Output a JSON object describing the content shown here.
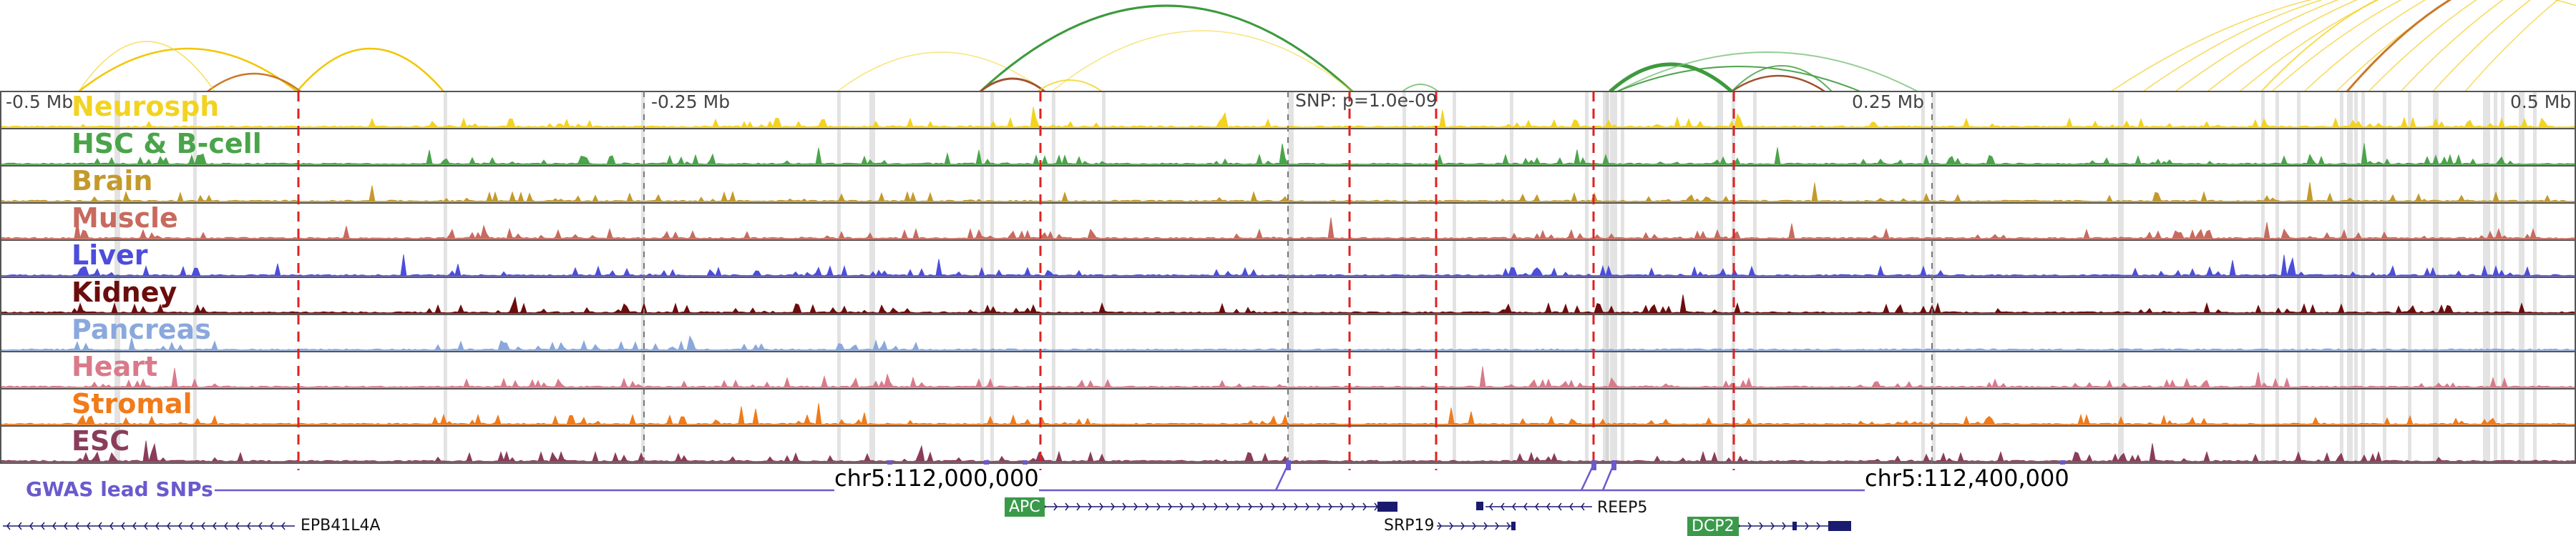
{
  "scale_labels": [
    "-0.5 Mb",
    "-0.25 Mb",
    "0.25 Mb",
    "0.5 Mb"
  ],
  "snp_label": "SNP: p=1.0e-09",
  "tracks": [
    {
      "name": "Neurosph",
      "color": "#f2d321"
    },
    {
      "name": "HSC & B-cell",
      "color": "#4aa44a"
    },
    {
      "name": "Brain",
      "color": "#c49a2c"
    },
    {
      "name": "Muscle",
      "color": "#c86a5e"
    },
    {
      "name": "Liver",
      "color": "#4d4ddb"
    },
    {
      "name": "Kidney",
      "color": "#6b0d0d"
    },
    {
      "name": "Pancreas",
      "color": "#8aa8dc"
    },
    {
      "name": "Heart",
      "color": "#d97a8a"
    },
    {
      "name": "Stromal",
      "color": "#f07b1a"
    },
    {
      "name": "ESC",
      "color": "#8a3d5a"
    }
  ],
  "gwas_label": "GWAS lead SNPs",
  "coords": [
    "chr5:112,000,000",
    "chr5:112,400,000"
  ],
  "genes": [
    {
      "name": "EPB41L4A",
      "style": "plain"
    },
    {
      "name": "APC",
      "style": "box",
      "box_color": "#3a9a4a"
    },
    {
      "name": "SRP19",
      "style": "plain"
    },
    {
      "name": "REEP5",
      "style": "plain"
    },
    {
      "name": "DCP2",
      "style": "box",
      "box_color": "#3a9a4a"
    }
  ],
  "colors": {
    "frame": "#555555",
    "highlight_red": "#e02020",
    "gray_band": "#cccccc",
    "gwas": "#6a5acd",
    "gene": "#1a1a6e"
  }
}
